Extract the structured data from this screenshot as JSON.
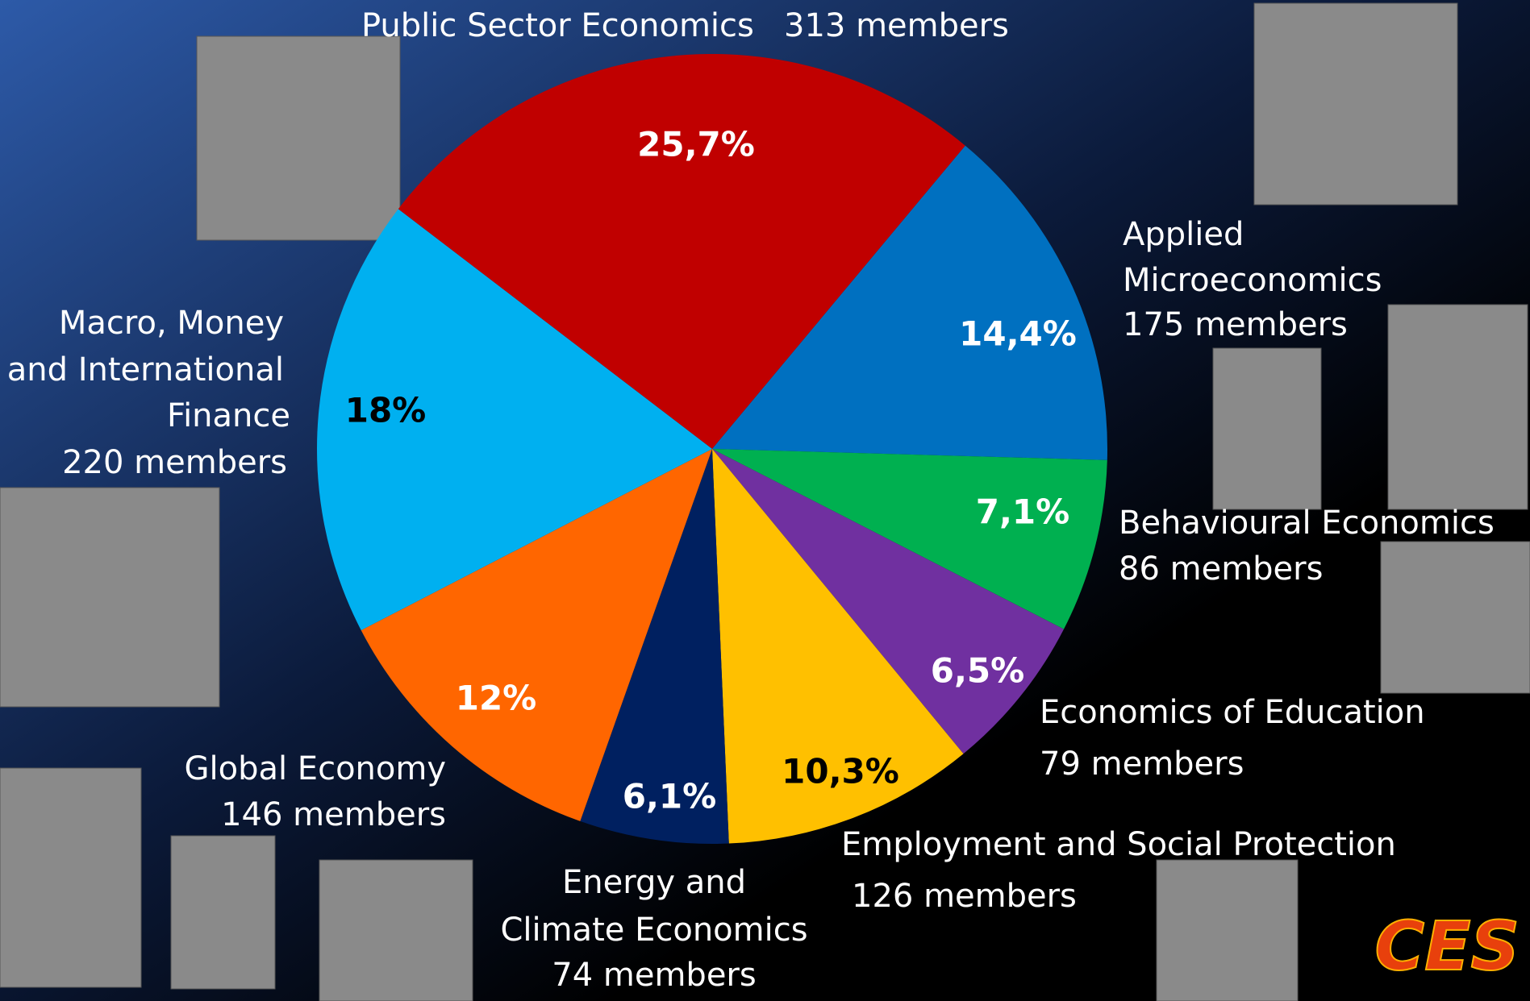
{
  "chart_data": {
    "type": "pie",
    "categories": [
      [
        "Public Sector Economics"
      ],
      [
        "Applied",
        "Microeconomics"
      ],
      [
        "Behavioural Economics"
      ],
      [
        "Economics of Education"
      ],
      [
        "Employment and Social Protection"
      ],
      [
        "Energy and",
        "Climate Economics"
      ],
      [
        "Global Economy"
      ],
      [
        "Macro, Money",
        "and International",
        "Finance"
      ]
    ],
    "member_labels": [
      "313 members",
      "175 members",
      "86 members",
      "79 members",
      "126 members",
      "74 members",
      "146 members",
      "220 members"
    ],
    "values": [
      25.7,
      14.4,
      7.1,
      6.5,
      10.3,
      6.1,
      12,
      18
    ],
    "value_labels": [
      "25,7%",
      "14,4%",
      "7,1%",
      "6,5%",
      "10,3%",
      "6,1%",
      "12%",
      "18%"
    ],
    "colors": [
      "#c00000",
      "#0070c0",
      "#00b050",
      "#7030a0",
      "#ffc000",
      "#002060",
      "#ff6600",
      "#00b0f0"
    ],
    "logo": "CES"
  }
}
